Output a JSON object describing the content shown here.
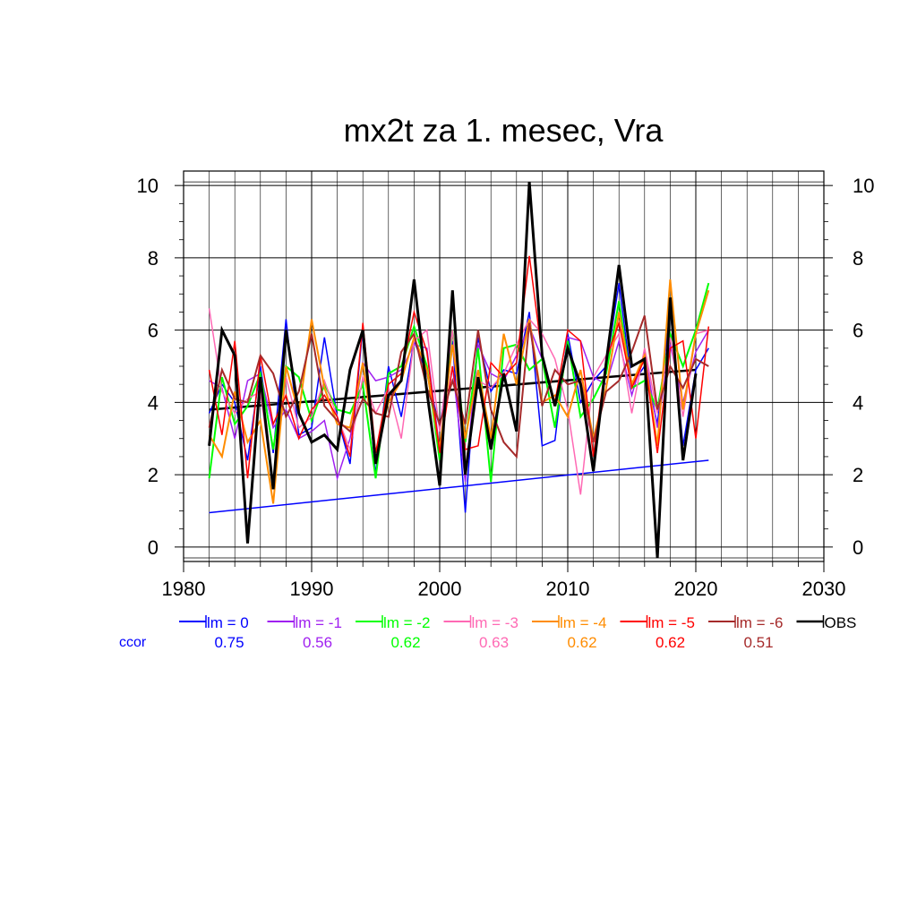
{
  "chart_data": {
    "type": "line",
    "title": "mx2t za 1. mesec, Vra",
    "xlabel": "",
    "ylabel": "",
    "xlim": [
      1980,
      2030
    ],
    "ylim": [
      -0.4,
      10.4
    ],
    "x_ticks": [
      1980,
      1990,
      2000,
      2010,
      2020,
      2030
    ],
    "y_ticks": [
      0,
      2,
      4,
      6,
      8,
      10
    ],
    "grid": true,
    "legend_position": "bottom",
    "ccor_label": "ccor",
    "x": [
      1982,
      1983,
      1984,
      1985,
      1986,
      1987,
      1988,
      1989,
      1990,
      1991,
      1992,
      1993,
      1994,
      1995,
      1996,
      1997,
      1998,
      1999,
      2000,
      2001,
      2002,
      2003,
      2004,
      2005,
      2006,
      2007,
      2008,
      2009,
      2010,
      2011,
      2012,
      2013,
      2014,
      2015,
      2016,
      2017,
      2018,
      2019,
      2020,
      2021
    ],
    "series": [
      {
        "name": "lm = 0",
        "ccor": "0.75",
        "color": "#0000ff",
        "width": 1.5,
        "values": [
          3.7,
          4.5,
          4.0,
          2.4,
          5.0,
          2.6,
          6.3,
          3.1,
          3.3,
          5.8,
          3.6,
          2.3,
          6.1,
          2.0,
          5.0,
          3.6,
          5.7,
          4.8,
          3.3,
          5.7,
          0.95,
          5.8,
          4.3,
          4.9,
          4.8,
          6.5,
          2.8,
          2.95,
          5.9,
          4.0,
          4.6,
          5.0,
          7.3,
          4.5,
          5.0,
          3.4,
          6.6,
          2.8,
          4.9,
          5.5
        ]
      },
      {
        "name": "lm = -1",
        "ccor": "0.56",
        "color": "#a020f0",
        "width": 1.5,
        "values": [
          4.6,
          4.4,
          3.0,
          4.6,
          4.8,
          3.3,
          3.8,
          3.0,
          3.2,
          3.5,
          1.9,
          3.0,
          5.1,
          4.6,
          4.7,
          4.9,
          5.6,
          5.5,
          2.7,
          5.0,
          1.8,
          5.6,
          4.8,
          4.6,
          5.3,
          6.1,
          5.2,
          3.3,
          5.8,
          5.7,
          4.7,
          4.5,
          5.7,
          4.2,
          5.4,
          3.3,
          5.6,
          4.0,
          5.4,
          6.0
        ]
      },
      {
        "name": "lm = -2",
        "ccor": "0.62",
        "color": "#00ff00",
        "width": 2,
        "values": [
          1.9,
          4.7,
          3.4,
          3.9,
          4.8,
          2.7,
          5.0,
          4.7,
          3.5,
          4.5,
          3.8,
          3.7,
          4.5,
          1.9,
          4.8,
          5.0,
          6.1,
          5.0,
          2.4,
          6.0,
          2.9,
          5.5,
          1.8,
          5.5,
          5.6,
          4.9,
          5.2,
          3.3,
          5.7,
          3.6,
          4.1,
          4.8,
          6.8,
          4.4,
          4.6,
          3.8,
          5.9,
          5.0,
          6.0,
          7.3
        ]
      },
      {
        "name": "lm = -3",
        "ccor": "0.63",
        "color": "#ff69b4",
        "width": 1.5,
        "values": [
          6.6,
          4.3,
          3.7,
          4.1,
          4.3,
          1.6,
          4.7,
          3.3,
          3.6,
          4.6,
          3.6,
          2.7,
          4.7,
          3.7,
          4.4,
          3.0,
          5.7,
          6.0,
          3.2,
          6.0,
          2.2,
          4.6,
          4.4,
          4.8,
          5.6,
          6.3,
          5.9,
          5.2,
          3.8,
          1.45,
          4.7,
          5.3,
          5.9,
          3.7,
          5.5,
          3.7,
          5.8,
          3.6,
          5.9,
          6.0
        ]
      },
      {
        "name": "lm = -4",
        "ccor": "0.62",
        "color": "#ff8c00",
        "width": 2,
        "values": [
          3.1,
          2.5,
          4.3,
          2.9,
          3.5,
          1.2,
          5.0,
          3.7,
          6.3,
          4.4,
          3.4,
          3.3,
          5.1,
          2.6,
          4.0,
          4.6,
          5.8,
          4.9,
          2.7,
          5.6,
          3.0,
          4.9,
          3.0,
          5.9,
          4.5,
          6.3,
          4.0,
          4.2,
          3.6,
          4.9,
          3.0,
          4.4,
          6.5,
          4.5,
          5.3,
          2.8,
          7.4,
          3.8,
          5.9,
          7.1
        ]
      },
      {
        "name": "lm = -5",
        "ccor": "0.62",
        "color": "#ff0000",
        "width": 1.5,
        "values": [
          4.9,
          3.1,
          5.7,
          1.9,
          5.3,
          3.4,
          4.2,
          3.0,
          3.8,
          4.2,
          3.6,
          2.5,
          6.2,
          2.6,
          4.5,
          4.8,
          6.5,
          5.4,
          2.6,
          5.0,
          2.7,
          2.8,
          5.1,
          4.7,
          5.1,
          8.05,
          5.3,
          4.0,
          6.0,
          5.7,
          2.5,
          5.2,
          6.2,
          4.4,
          5.2,
          2.6,
          5.5,
          5.7,
          3.0,
          6.1
        ]
      },
      {
        "name": "lm = -6",
        "ccor": "0.51",
        "color": "#a52a2a",
        "width": 2,
        "values": [
          3.3,
          4.9,
          4.1,
          4.0,
          5.3,
          4.8,
          3.6,
          4.3,
          5.9,
          3.9,
          3.5,
          3.2,
          4.1,
          3.7,
          3.6,
          5.4,
          5.9,
          4.4,
          3.4,
          4.6,
          3.4,
          6.0,
          3.8,
          2.9,
          2.5,
          6.2,
          3.9,
          4.9,
          4.5,
          4.6,
          2.9,
          4.3,
          4.6,
          5.4,
          6.4,
          3.8,
          5.0,
          4.4,
          5.2,
          5.0
        ]
      },
      {
        "name": "OBS",
        "ccor": "",
        "color": "#000000",
        "width": 3,
        "values": [
          2.8,
          6.0,
          5.3,
          0.1,
          4.7,
          1.6,
          6.0,
          3.7,
          2.9,
          3.1,
          2.7,
          4.9,
          6.0,
          2.3,
          4.2,
          4.6,
          7.4,
          4.3,
          1.7,
          7.1,
          2.0,
          4.7,
          2.7,
          4.8,
          3.2,
          10.1,
          5.3,
          3.9,
          5.5,
          4.5,
          2.1,
          5.1,
          7.8,
          5.0,
          5.2,
          -0.3,
          6.9,
          2.4,
          4.8,
          null
        ]
      }
    ],
    "trend_lines": [
      {
        "name": "lm = 0 trend",
        "color": "#0000ff",
        "width": 1.5,
        "x": [
          1982,
          2021
        ],
        "y": [
          0.95,
          2.4
        ]
      },
      {
        "name": "OBS trend",
        "color": "#000000",
        "width": 2.5,
        "x": [
          1982,
          2020
        ],
        "y": [
          3.8,
          4.9
        ]
      }
    ]
  }
}
